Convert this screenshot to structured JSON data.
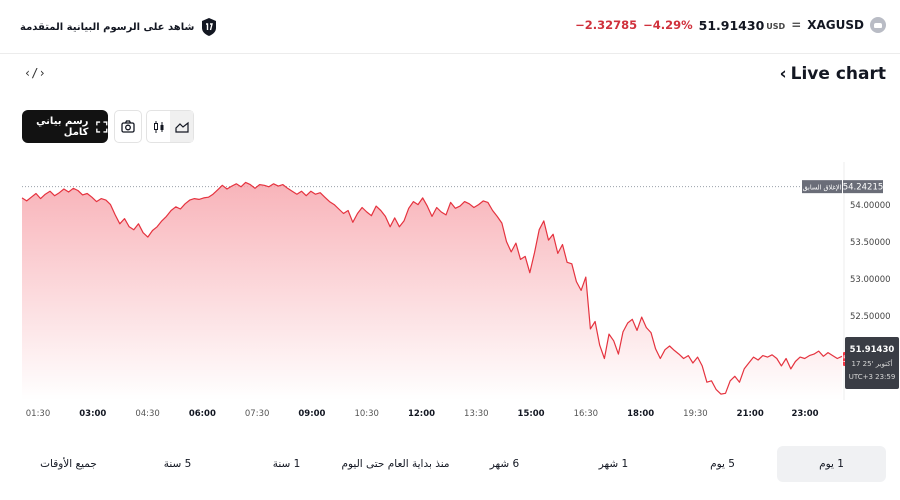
{
  "header": {
    "promo_text": "شاهد على الرسوم البيانية المتقدمة",
    "promo_icon": "tradingview-badge-icon",
    "change_abs": "−2.32785",
    "change_pct": "−4.29%",
    "price": "51.91430",
    "currency": "USD",
    "symbol": "XAGUSD",
    "symbol_icon": "silver-coin-icon"
  },
  "title": {
    "label": "Live chart",
    "chevron": "‹",
    "embed_glyph": "‹/›"
  },
  "toolbar": {
    "fullscreen_label": "رسم بياني كامل",
    "fullscreen_icon": "fullscreen-icon",
    "snapshot_icon": "camera-icon",
    "candles_icon": "candles-icon",
    "area_icon": "area-chart-icon",
    "active_style": "area"
  },
  "colors": {
    "line": "#e5333f",
    "fill_top": "#f7a6ad",
    "price_tag": "#f23645",
    "prev_tag": "#6a6d78"
  },
  "chart_data": {
    "type": "area",
    "x_ticks": [
      "01:30",
      "03:00",
      "04:30",
      "06:00",
      "07:30",
      "09:00",
      "10:30",
      "12:00",
      "13:30",
      "15:00",
      "16:30",
      "18:00",
      "19:30",
      "21:00",
      "23:00"
    ],
    "x_ticks_bold": [
      "03:00",
      "06:00",
      "09:00",
      "12:00",
      "15:00",
      "18:00",
      "21:00",
      "23:00"
    ],
    "y_ticks": [
      "54.00000",
      "53.50000",
      "53.00000",
      "52.50000",
      "52.00000"
    ],
    "ylim": [
      51.36,
      54.44
    ],
    "prev_close": {
      "label": "الإغلاق السابق",
      "value": "54.24215",
      "y": 54.24215
    },
    "last": {
      "value": "51.91430",
      "y": 51.9143
    },
    "crosshair": {
      "value": "51.91430",
      "date": "17 أكتوبر '25",
      "time": "UTC+3 23:59"
    },
    "series": [
      {
        "values": [
          54.09,
          54.05,
          54.1,
          54.15,
          54.08,
          54.14,
          54.18,
          54.12,
          54.16,
          54.21,
          54.17,
          54.22,
          54.19,
          54.13,
          54.15,
          54.1,
          54.04,
          54.08,
          54.06,
          54.0,
          53.86,
          53.74,
          53.81,
          53.7,
          53.66,
          53.74,
          53.62,
          53.56,
          53.65,
          53.7,
          53.78,
          53.84,
          53.92,
          53.97,
          53.94,
          54.01,
          54.06,
          54.08,
          54.07,
          54.09,
          54.1,
          54.14,
          54.2,
          54.26,
          54.21,
          54.25,
          54.28,
          54.24,
          54.3,
          54.27,
          54.22,
          54.27,
          54.26,
          54.24,
          54.28,
          54.25,
          54.27,
          54.22,
          54.18,
          54.14,
          54.18,
          54.12,
          54.18,
          54.14,
          54.16,
          54.1,
          54.04,
          54.0,
          53.94,
          53.88,
          53.92,
          53.76,
          53.88,
          53.96,
          53.9,
          53.85,
          53.98,
          53.92,
          53.84,
          53.7,
          53.82,
          53.7,
          53.78,
          53.95,
          54.04,
          54.0,
          54.09,
          53.98,
          53.84,
          53.96,
          53.9,
          53.86,
          54.03,
          53.95,
          53.98,
          54.04,
          54.01,
          53.96,
          54.0,
          54.05,
          54.03,
          53.92,
          53.84,
          53.75,
          53.5,
          53.36,
          53.48,
          53.26,
          53.3,
          53.08,
          53.35,
          53.66,
          53.78,
          53.52,
          53.6,
          53.34,
          53.46,
          53.22,
          53.2,
          52.96,
          52.84,
          53.02,
          52.32,
          52.42,
          52.1,
          51.92,
          52.25,
          52.16,
          51.98,
          52.28,
          52.4,
          52.45,
          52.3,
          52.48,
          52.34,
          52.27,
          52.05,
          51.92,
          52.04,
          52.09,
          52.03,
          51.98,
          51.92,
          51.96,
          51.86,
          51.94,
          51.82,
          51.6,
          51.62,
          51.5,
          51.44,
          51.45,
          51.62,
          51.68,
          51.6,
          51.78,
          51.86,
          51.94,
          51.9,
          51.96,
          51.94,
          51.97,
          51.92,
          51.82,
          51.92,
          51.78,
          51.88,
          51.94,
          51.92,
          51.96,
          51.98,
          52.02,
          51.95,
          52.0,
          51.96,
          51.92,
          51.95
        ]
      }
    ],
    "grid": true
  },
  "ranges": [
    {
      "label": "1 يوم",
      "active": true
    },
    {
      "label": "5 يوم",
      "active": false
    },
    {
      "label": "1 شهر",
      "active": false
    },
    {
      "label": "6 شهر",
      "active": false
    },
    {
      "label": "منذ بداية العام حتى اليوم",
      "active": false
    },
    {
      "label": "1 سنة",
      "active": false
    },
    {
      "label": "5 سنة",
      "active": false
    },
    {
      "label": "جميع الأوقات",
      "active": false
    }
  ]
}
